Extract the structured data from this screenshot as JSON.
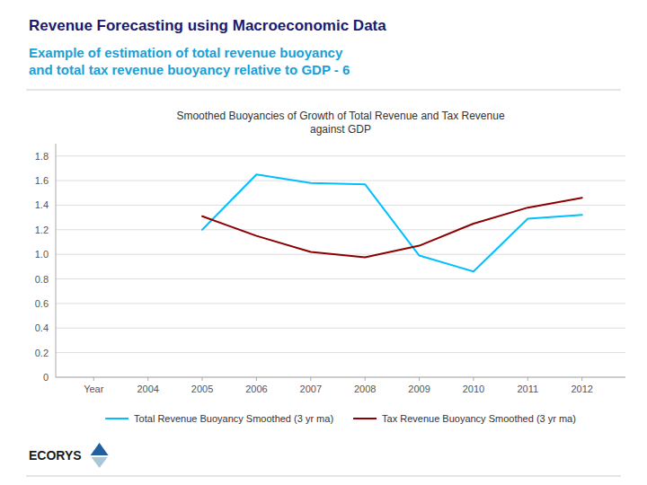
{
  "title": "Revenue Forecasting using Macroeconomic Data",
  "subtitle": "Example of estimation of total revenue buoyancy\nand total tax revenue buoyancy relative to GDP - 6",
  "annotations": [
    "ECORYS"
  ],
  "chart_data": {
    "type": "line",
    "title": "Smoothed Buoyancies of Growth of Total Revenue and Tax Revenue\nagainst GDP",
    "x": [
      2005,
      2006,
      2007,
      2008,
      2009,
      2010,
      2011,
      2012
    ],
    "series": [
      {
        "name": "Total Revenue Buoyancy Smoothed (3 yr ma)",
        "color": "#00BFFF",
        "values": [
          1.2,
          1.65,
          1.58,
          1.57,
          0.99,
          0.86,
          1.29,
          1.32
        ]
      },
      {
        "name": "Tax Revenue Buoyancy Smoothed (3 yr ma)",
        "color": "#8B0000",
        "values": [
          1.31,
          1.15,
          1.02,
          0.975,
          1.07,
          1.25,
          1.38,
          1.46
        ]
      }
    ],
    "xlim": [
      2002.3,
      2012.8
    ],
    "xticks": [
      {
        "value": 2003,
        "label": "Year"
      },
      2004,
      2005,
      2006,
      2007,
      2008,
      2009,
      2010,
      2011,
      2012
    ],
    "ylim": [
      0,
      1.9
    ],
    "yticks": [
      0,
      0.2,
      0.4,
      0.6,
      0.8,
      {
        "value": 1.0,
        "label": "1.0"
      },
      1.2,
      1.4,
      1.6,
      1.8
    ],
    "grid": true,
    "legend": "bottom"
  }
}
